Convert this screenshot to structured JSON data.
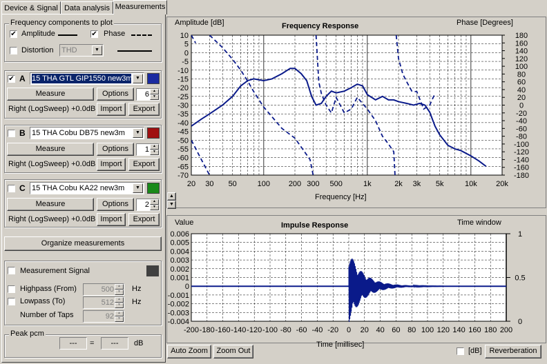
{
  "tabs": [
    "Device & Signal",
    "Data analysis",
    "Measurements"
  ],
  "freq_components": {
    "title": "Frequency components to plot",
    "amplitude_label": "Amplitude",
    "phase_label": "Phase",
    "distortion_label": "Distortion",
    "distortion_select": "THD"
  },
  "measurements": [
    {
      "letter": "A",
      "checked": true,
      "name": "15 THA GTL GIP1550 new3m",
      "color": "#1a2aa0",
      "measure_label": "Measure",
      "options_label": "Options",
      "count": "6",
      "info": "Right (LogSweep) +0.0dB",
      "import_label": "Import",
      "export_label": "Export"
    },
    {
      "letter": "B",
      "checked": false,
      "name": "15 THA  Cobu DB75 new3m",
      "color": "#a01010",
      "measure_label": "Measure",
      "options_label": "Options",
      "count": "1",
      "info": "Right (LogSweep) +0.0dB",
      "import_label": "Import",
      "export_label": "Export"
    },
    {
      "letter": "C",
      "checked": false,
      "name": "15 THA  Cobu KA22 new3m",
      "color": "#1a8a1a",
      "measure_label": "Measure",
      "options_label": "Options",
      "count": "2",
      "info": "Right (LogSweep) +0.0dB",
      "import_label": "Import",
      "export_label": "Export"
    }
  ],
  "organize_label": "Organize measurements",
  "signal": {
    "title": "Measurement Signal",
    "highpass_label": "Highpass (From)",
    "highpass_value": "500",
    "lowpass_label": "Lowpass (To)",
    "lowpass_value": "512",
    "taps_label": "Number of Taps",
    "taps_value": "92",
    "hz": "Hz"
  },
  "peak": {
    "title": "Peak pcm",
    "left": "---",
    "eq": "=",
    "right": "---",
    "unit": "dB"
  },
  "freq_chart": {
    "title": "Frequency Response",
    "ylabel": "Amplitude [dB]",
    "y2label": "Phase [Degrees]",
    "xlabel": "Frequency [Hz]"
  },
  "impulse_chart": {
    "title": "Impulse Response",
    "ylabel": "Value",
    "y2label": "Time window",
    "xlabel": "Time [millisec]"
  },
  "bottom": {
    "auto_zoom": "Auto Zoom",
    "zoom_out": "Zoom Out",
    "db_label": "[dB]",
    "reverb": "Reverberation"
  },
  "colors": {
    "trace": "#0a1a8a"
  },
  "chart_data": [
    {
      "type": "line",
      "title": "Frequency Response",
      "xlabel": "Frequency [Hz]",
      "ylabel": "Amplitude [dB]",
      "y2label": "Phase [Degrees]",
      "xscale": "log",
      "xlim": [
        20,
        20000
      ],
      "ylim": [
        -70,
        10
      ],
      "y2lim": [
        -180,
        180
      ],
      "xticks": [
        "20",
        "30",
        "50",
        "100",
        "200",
        "300",
        "500",
        "1k",
        "2k",
        "3k",
        "5k",
        "10k",
        "20k"
      ],
      "yticks": [
        "10",
        "5",
        "0",
        "-5",
        "-10",
        "-15",
        "-20",
        "-25",
        "-30",
        "-35",
        "-40",
        "-45",
        "-50",
        "-55",
        "-60",
        "-65",
        "-70"
      ],
      "y2ticks": [
        "180",
        "160",
        "140",
        "120",
        "100",
        "80",
        "60",
        "40",
        "20",
        "0",
        "-20",
        "-40",
        "-60",
        "-80",
        "-100",
        "-120",
        "-140",
        "-160",
        "-180"
      ],
      "grid": true,
      "series": [
        {
          "style": "solid",
          "x": [
            20,
            25,
            30,
            40,
            50,
            60,
            70,
            80,
            100,
            120,
            150,
            180,
            200,
            230,
            260,
            290,
            320,
            360,
            400,
            450,
            500,
            600,
            700,
            800,
            900,
            1000,
            1200,
            1400,
            1600,
            1800,
            2000,
            2400,
            2800,
            3200,
            3600,
            4000,
            4500,
            5000,
            6000,
            7000,
            8000,
            10000,
            12000,
            14000
          ],
          "y": [
            -42,
            -38,
            -35,
            -30,
            -25,
            -19,
            -16,
            -15,
            -16,
            -15,
            -12,
            -9,
            -9,
            -12,
            -16,
            -25,
            -30,
            -29,
            -25,
            -22,
            -23,
            -22,
            -20,
            -18,
            -19,
            -24,
            -27,
            -25,
            -27,
            -27,
            -28,
            -29,
            -30,
            -29,
            -30,
            -34,
            -42,
            -47,
            -53,
            -55,
            -56,
            -59,
            -62,
            -65
          ]
        },
        {
          "style": "dashed",
          "x": [
            30,
            40,
            50,
            60,
            70,
            80,
            100,
            150,
            200,
            280,
            300,
            320,
            340,
            360,
            400,
            450,
            500,
            600,
            700,
            800,
            1000,
            1200,
            1400,
            1600,
            1800,
            1850,
            1900,
            1950,
            2000,
            2200,
            2400,
            2700,
            3000,
            3500,
            4000,
            4500
          ],
          "y": [
            180,
            148,
            118,
            90,
            62,
            35,
            -5,
            -60,
            -85,
            -140,
            -180,
            180,
            60,
            30,
            0,
            -20,
            20,
            -20,
            -10,
            20,
            -10,
            -40,
            -80,
            -100,
            -120,
            -180,
            180,
            150,
            120,
            80,
            60,
            35,
            35,
            -10,
            0,
            30
          ]
        },
        {
          "style": "dashed",
          "x": [
            20,
            25,
            30
          ],
          "y": [
            -90,
            -140,
            -180
          ]
        },
        {
          "style": "dashed",
          "x": [
            20,
            22
          ],
          "y": [
            180,
            160
          ]
        }
      ]
    },
    {
      "type": "line",
      "title": "Impulse Response",
      "xlabel": "Time [millisec]",
      "ylabel": "Value",
      "y2label": "Time window",
      "xlim": [
        -200,
        200
      ],
      "ylim": [
        -0.004,
        0.006
      ],
      "y2lim": [
        0,
        1
      ],
      "xticks": [
        "-200",
        "-180",
        "-160",
        "-140",
        "-120",
        "-100",
        "-80",
        "-60",
        "-40",
        "-20",
        "0",
        "20",
        "40",
        "60",
        "80",
        "100",
        "120",
        "140",
        "160",
        "180",
        "200"
      ],
      "yticks": [
        "0.006",
        "0.005",
        "0.004",
        "0.003",
        "0.002",
        "0.001",
        "0",
        "-0.001",
        "-0.002",
        "-0.003",
        "-0.004"
      ],
      "y2ticks": [
        "1",
        "0.5",
        "0"
      ],
      "grid": true,
      "series": [
        {
          "style": "solid",
          "name": "",
          "impulse_start_ms": 0,
          "peak_positive": 0.0039,
          "peak_negative": -0.004,
          "decay_end_ms": 120
        }
      ]
    }
  ]
}
